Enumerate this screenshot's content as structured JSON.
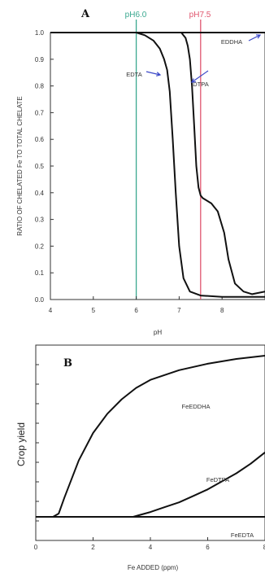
{
  "chart_data": [
    {
      "panel": "A",
      "type": "line",
      "xlabel": "pH",
      "ylabel": "RATIO OF CHELATED Fe TO TOTAL CHELATE",
      "xlim": [
        4,
        9
      ],
      "ylim": [
        0,
        1.0
      ],
      "xticks": [
        4,
        5,
        6,
        7,
        8
      ],
      "yticks": [
        "0.0",
        "0.1",
        "0.2",
        "0.3",
        "0.4",
        "0.5",
        "0.6",
        "0.7",
        "0.8",
        "0.9",
        "1.0"
      ],
      "reference_lines": [
        {
          "label": "pH6.0",
          "x": 6.0,
          "color": "#3aa88f"
        },
        {
          "label": "pH7.5",
          "x": 7.5,
          "color": "#e0566e"
        }
      ],
      "series": [
        {
          "name": "EDTA",
          "x": [
            4,
            6.0,
            6.2,
            6.4,
            6.55,
            6.65,
            6.72,
            6.78,
            6.85,
            6.92,
            7.0,
            7.1,
            7.25,
            7.5,
            8.0,
            8.5,
            9.0
          ],
          "y": [
            1.0,
            1.0,
            0.99,
            0.97,
            0.94,
            0.9,
            0.86,
            0.78,
            0.6,
            0.4,
            0.2,
            0.08,
            0.03,
            0.015,
            0.01,
            0.01,
            0.01
          ]
        },
        {
          "name": "DTPA",
          "x": [
            4,
            7.05,
            7.15,
            7.2,
            7.25,
            7.3,
            7.35,
            7.4,
            7.45,
            7.5,
            7.55,
            7.6,
            7.75,
            7.9,
            8.05,
            8.15,
            8.3,
            8.5,
            8.7,
            9.0
          ],
          "y": [
            1.0,
            1.0,
            0.98,
            0.95,
            0.9,
            0.8,
            0.65,
            0.5,
            0.42,
            0.39,
            0.38,
            0.375,
            0.36,
            0.33,
            0.25,
            0.15,
            0.06,
            0.03,
            0.02,
            0.03
          ]
        },
        {
          "name": "EDDHA",
          "x": [
            4,
            9.0
          ],
          "y": [
            1.0,
            1.0
          ]
        }
      ]
    },
    {
      "panel": "B",
      "type": "line",
      "xlabel": "Fe ADDED (ppm)",
      "ylabel": "Crop yield",
      "xlim": [
        0,
        8
      ],
      "xticks": [
        0,
        2,
        4,
        6,
        8
      ],
      "ylim": [
        0,
        1.0
      ],
      "series": [
        {
          "name": "FeEDDHA",
          "x": [
            0.6,
            0.8,
            1.0,
            1.5,
            2.0,
            2.5,
            3.0,
            3.5,
            4.0,
            5.0,
            6.0,
            7.0,
            8.0
          ],
          "y": [
            0.0,
            0.02,
            0.12,
            0.35,
            0.52,
            0.64,
            0.73,
            0.8,
            0.85,
            0.91,
            0.95,
            0.98,
            1.0
          ]
        },
        {
          "name": "FeDTPA",
          "x": [
            3.4,
            3.6,
            4.0,
            4.5,
            5.0,
            5.5,
            6.0,
            6.5,
            7.0,
            7.5,
            8.0
          ],
          "y": [
            0.0,
            0.01,
            0.03,
            0.06,
            0.09,
            0.13,
            0.17,
            0.22,
            0.27,
            0.33,
            0.4
          ]
        },
        {
          "name": "FeEDTA",
          "x": [
            0,
            8.0
          ],
          "y": [
            0.0,
            0.0
          ]
        }
      ]
    }
  ],
  "labels": {
    "panel_a": "A",
    "panel_b": "B",
    "ph6": "pH6.0",
    "ph75": "pH7.5",
    "edta": "EDTA",
    "dtpa": "DTPA",
    "eddha": "EDDHA",
    "feeddha": "FeEDDHA",
    "fedtpa": "FeDTPA",
    "feedta": "FeEDTA"
  },
  "colors": {
    "ph6": "#3aa88f",
    "ph75": "#e0566e",
    "arrow": "#3b48c8",
    "curve": "#111111"
  }
}
